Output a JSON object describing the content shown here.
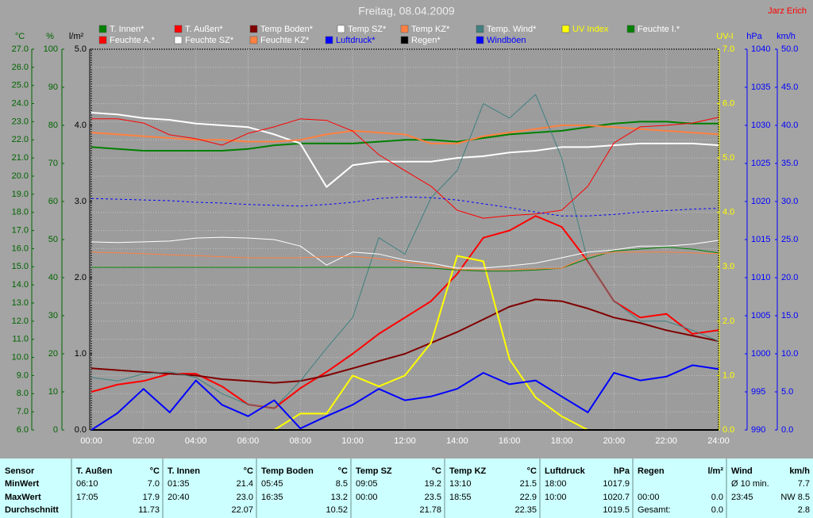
{
  "chart_data": {
    "type": "line",
    "title": "Freitag, 08.04.2009",
    "author": "Jarz Erich",
    "x": [
      0,
      1,
      2,
      3,
      4,
      5,
      6,
      7,
      8,
      9,
      10,
      11,
      12,
      13,
      14,
      15,
      16,
      17,
      18,
      19,
      20,
      21,
      22,
      23,
      24
    ],
    "xlim": [
      0,
      24
    ],
    "xticks": [
      {
        "value": 0,
        "label": "00:00"
      },
      {
        "value": 2,
        "label": "02:00"
      },
      {
        "value": 4,
        "label": "04:00"
      },
      {
        "value": 6,
        "label": "06:00"
      },
      {
        "value": 8,
        "label": "08:00"
      },
      {
        "value": 10,
        "label": "10:00"
      },
      {
        "value": 12,
        "label": "12:00"
      },
      {
        "value": 14,
        "label": "14:00"
      },
      {
        "value": 16,
        "label": "16:00"
      },
      {
        "value": 18,
        "label": "18:00"
      },
      {
        "value": 20,
        "label": "20:00"
      },
      {
        "value": 22,
        "label": "22:00"
      },
      {
        "value": 24,
        "label": "24:00"
      }
    ],
    "ylabel": "°C",
    "ylim": [
      6,
      27
    ],
    "yticks": [
      {
        "value": 6,
        "label": "6.0"
      },
      {
        "value": 7,
        "label": "7.0"
      },
      {
        "value": 8,
        "label": "8.0"
      },
      {
        "value": 9,
        "label": "9.0"
      },
      {
        "value": 10,
        "label": "10.0"
      },
      {
        "value": 11,
        "label": "11.0"
      },
      {
        "value": 12,
        "label": "12.0"
      },
      {
        "value": 13,
        "label": "13.0"
      },
      {
        "value": 14,
        "label": "14.0"
      },
      {
        "value": 15,
        "label": "15.0"
      },
      {
        "value": 16,
        "label": "16.0"
      },
      {
        "value": 17,
        "label": "17.0"
      },
      {
        "value": 18,
        "label": "18.0"
      },
      {
        "value": 19,
        "label": "19.0"
      },
      {
        "value": 20,
        "label": "20.0"
      },
      {
        "value": 21,
        "label": "21.0"
      },
      {
        "value": 22,
        "label": "22.0"
      },
      {
        "value": 23,
        "label": "23.0"
      },
      {
        "value": 24,
        "label": "24.0"
      },
      {
        "value": 25,
        "label": "25.0"
      },
      {
        "value": 26,
        "label": "26.0"
      },
      {
        "value": 27,
        "label": "27.0"
      }
    ],
    "y2label": "%",
    "y2lim": [
      0,
      100
    ],
    "y2ticks": [
      0,
      10,
      20,
      30,
      40,
      50,
      60,
      70,
      80,
      90,
      100
    ],
    "y3label": "l/m²",
    "y3lim": [
      0,
      5
    ],
    "y3ticks": [
      {
        "value": 0,
        "label": "0.0"
      },
      {
        "value": 1,
        "label": "1.0"
      },
      {
        "value": 2,
        "label": "2.0"
      },
      {
        "value": 3,
        "label": "3.0"
      },
      {
        "value": 4,
        "label": "4.0"
      },
      {
        "value": 5,
        "label": "5.0"
      }
    ],
    "y4label": "UV-I",
    "y4lim": [
      0,
      7
    ],
    "y4ticks": [
      {
        "value": 0,
        "label": "0.0"
      },
      {
        "value": 1,
        "label": "1.0"
      },
      {
        "value": 2,
        "label": "2.0"
      },
      {
        "value": 3,
        "label": "3.0"
      },
      {
        "value": 4,
        "label": "4.0"
      },
      {
        "value": 5,
        "label": "5.0"
      },
      {
        "value": 6,
        "label": "6.0"
      },
      {
        "value": 7,
        "label": "7.0"
      }
    ],
    "y5label": "hPa",
    "y5lim": [
      990,
      1040
    ],
    "y5ticks": [
      990,
      995,
      1000,
      1005,
      1010,
      1015,
      1020,
      1025,
      1030,
      1035,
      1040
    ],
    "y6label": "km/h",
    "y6lim": [
      0,
      50
    ],
    "y6ticks": [
      {
        "value": 0,
        "label": "0.0"
      },
      {
        "value": 5,
        "label": "5.0"
      },
      {
        "value": 10,
        "label": "10.0"
      },
      {
        "value": 15,
        "label": "15.0"
      },
      {
        "value": 20,
        "label": "20.0"
      },
      {
        "value": 25,
        "label": "25.0"
      },
      {
        "value": 30,
        "label": "30.0"
      },
      {
        "value": 35,
        "label": "35.0"
      },
      {
        "value": 40,
        "label": "40.0"
      },
      {
        "value": 45,
        "label": "45.0"
      },
      {
        "value": 50,
        "label": "50.0"
      }
    ],
    "axis_colors": {
      "y": "#006400",
      "y2": "#006400",
      "y3": "#000000",
      "y4": "#ffff00",
      "y5": "#0000ff",
      "y6": "#0000ff"
    },
    "grid": true,
    "series": [
      {
        "name": "T. Innen*",
        "color": "#008000",
        "axis": "y",
        "line": "thick",
        "values": [
          21.6,
          21.5,
          21.4,
          21.4,
          21.4,
          21.4,
          21.5,
          21.7,
          21.8,
          21.8,
          21.8,
          21.9,
          22.0,
          22.0,
          21.9,
          22.1,
          22.3,
          22.4,
          22.5,
          22.7,
          22.9,
          23.0,
          23.0,
          22.9,
          22.9
        ]
      },
      {
        "name": "T. Außen*",
        "color": "#ff0000",
        "axis": "y",
        "line": "thick",
        "values": [
          8.1,
          8.5,
          8.7,
          9.1,
          9.1,
          8.4,
          7.4,
          7.2,
          8.3,
          9.2,
          10.2,
          11.3,
          12.2,
          13.1,
          14.6,
          16.6,
          17.0,
          17.8,
          17.2,
          15.3,
          13.1,
          12.2,
          12.4,
          11.3,
          11.5
        ]
      },
      {
        "name": "Temp Boden*",
        "color": "#800000",
        "axis": "y",
        "line": "thick",
        "values": [
          9.4,
          9.3,
          9.2,
          9.1,
          9.0,
          8.8,
          8.7,
          8.6,
          8.7,
          9.0,
          9.4,
          9.8,
          10.2,
          10.8,
          11.4,
          12.1,
          12.8,
          13.2,
          13.1,
          12.7,
          12.2,
          11.9,
          11.5,
          11.2,
          10.9
        ]
      },
      {
        "name": "Temp SZ*",
        "color": "#ffffff",
        "axis": "y",
        "line": "thick",
        "values": [
          23.5,
          23.4,
          23.2,
          23.1,
          22.9,
          22.8,
          22.7,
          22.3,
          21.8,
          19.4,
          20.6,
          20.8,
          20.8,
          20.8,
          21.0,
          21.1,
          21.3,
          21.4,
          21.6,
          21.6,
          21.7,
          21.8,
          21.8,
          21.8,
          21.7
        ]
      },
      {
        "name": "Temp KZ*",
        "color": "#ff8040",
        "axis": "y",
        "line": "thick",
        "values": [
          22.4,
          22.3,
          22.2,
          22.1,
          22.0,
          22.0,
          21.9,
          21.9,
          22.0,
          22.3,
          22.5,
          22.4,
          22.3,
          21.8,
          21.8,
          22.2,
          22.4,
          22.6,
          22.8,
          22.8,
          22.7,
          22.6,
          22.5,
          22.4,
          22.3
        ]
      },
      {
        "name": "Temp. Wind*",
        "color": "#408080",
        "axis": "y",
        "line": "thin",
        "values": [
          8.9,
          8.7,
          9.1,
          9.2,
          8.9,
          8.0,
          7.4,
          7.2,
          8.7,
          10.5,
          12.2,
          16.6,
          15.7,
          18.8,
          20.3,
          24.0,
          23.2,
          24.5,
          21.0,
          15.3,
          13.1,
          12.0,
          12.0,
          11.5,
          10.9
        ]
      },
      {
        "name": "UV Index",
        "color": "#ffff00",
        "axis": "y4",
        "line": "thick",
        "values": [
          0,
          0,
          0,
          0,
          0,
          0,
          0,
          0,
          0.3,
          0.3,
          1.0,
          0.8,
          1.0,
          1.6,
          3.2,
          3.1,
          1.3,
          0.6,
          0.25,
          0,
          0,
          0,
          0,
          0,
          0
        ]
      },
      {
        "name": "Feuchte I.*",
        "color": "#008000",
        "axis": "y2",
        "line": "thin",
        "values": [
          42.7,
          42.7,
          42.7,
          42.7,
          42.7,
          42.7,
          42.7,
          42.7,
          42.7,
          42.7,
          42.7,
          42.7,
          42.7,
          42.5,
          42.0,
          41.7,
          41.7,
          42.0,
          42.5,
          45.0,
          47.0,
          47.5,
          48.0,
          47.5,
          46.5
        ]
      },
      {
        "name": "Feuchte A.*",
        "color": "#ff0000",
        "axis": "y2",
        "line": "thin",
        "values": [
          81.7,
          81.7,
          80.6,
          77.5,
          76.5,
          74.8,
          77.9,
          79.6,
          81.7,
          81.3,
          78.5,
          72.3,
          68.1,
          64.0,
          57.7,
          55.6,
          56.3,
          56.7,
          57.7,
          64.0,
          75.4,
          79.6,
          80.0,
          80.6,
          82.1
        ]
      },
      {
        "name": "Feuchte SZ*",
        "color": "#ffffff",
        "axis": "y2",
        "line": "thin",
        "values": [
          49.4,
          49.2,
          49.4,
          49.6,
          50.4,
          50.6,
          50.4,
          50.0,
          48.3,
          43.3,
          46.7,
          46.2,
          44.6,
          43.8,
          42.5,
          42.5,
          43.1,
          43.8,
          45.2,
          46.7,
          47.3,
          48.3,
          48.3,
          48.8,
          49.8
        ]
      },
      {
        "name": "Feuchte KZ*",
        "color": "#ff8040",
        "axis": "y2",
        "line": "thin",
        "values": [
          46.7,
          46.5,
          46.3,
          46.0,
          45.8,
          45.5,
          45.2,
          45.2,
          45.2,
          45.5,
          45.6,
          45.0,
          44.2,
          43.3,
          42.1,
          42.1,
          42.1,
          42.3,
          42.5,
          45.8,
          46.7,
          46.7,
          46.7,
          46.5,
          46.3
        ]
      },
      {
        "name": "Luftdruck*",
        "color": "#0000ff",
        "axis": "y5",
        "line": "dashed",
        "values": [
          1020.4,
          1020.3,
          1020.2,
          1020.1,
          1019.9,
          1019.8,
          1019.6,
          1019.5,
          1019.4,
          1019.6,
          1019.9,
          1020.4,
          1020.6,
          1020.5,
          1020.2,
          1019.7,
          1019.2,
          1018.6,
          1018.1,
          1018.1,
          1018.3,
          1018.6,
          1018.8,
          1019.0,
          1019.1
        ]
      },
      {
        "name": "Regen*",
        "color": "#000000",
        "axis": "y3",
        "line": "thick",
        "values": [
          0,
          0,
          0,
          0,
          0,
          0,
          0,
          0,
          0,
          0,
          0,
          0,
          0,
          0,
          0,
          0,
          0,
          0,
          0,
          0,
          0,
          0,
          0,
          0,
          0
        ]
      },
      {
        "name": "Windböen",
        "color": "#0000ff",
        "axis": "y6",
        "line": "thick",
        "values": [
          0.0,
          2.2,
          5.4,
          2.3,
          6.5,
          3.3,
          1.8,
          3.9,
          0.2,
          1.8,
          3.3,
          5.4,
          3.9,
          4.4,
          5.4,
          7.5,
          6.0,
          6.5,
          4.4,
          2.3,
          7.5,
          6.5,
          7.0,
          8.5,
          8.0
        ]
      }
    ]
  },
  "table": {
    "columns": [
      {
        "name": "Sensor"
      },
      {
        "name": "T. Außen",
        "unit": "°C"
      },
      {
        "name": "T. Innen",
        "unit": "°C"
      },
      {
        "name": "Temp Boden",
        "unit": "°C"
      },
      {
        "name": "Temp SZ",
        "unit": "°C"
      },
      {
        "name": "Temp KZ",
        "unit": "°C"
      },
      {
        "name": "Luftdruck",
        "unit": "hPa"
      },
      {
        "name": "Regen",
        "unit": "l/m²"
      },
      {
        "name": "Wind",
        "unit": "km/h"
      }
    ],
    "rows": [
      {
        "label": "MinWert",
        "cells": [
          [
            "06:10",
            "7.0"
          ],
          [
            "01:35",
            "21.4"
          ],
          [
            "05:45",
            "8.5"
          ],
          [
            "09:05",
            "19.2"
          ],
          [
            "13:10",
            "21.5"
          ],
          [
            "18:00",
            "1017.9"
          ],
          [
            null,
            null
          ],
          [
            "Ø 10 min.",
            "7.7"
          ]
        ]
      },
      {
        "label": "MaxWert",
        "cells": [
          [
            "17:05",
            "17.9"
          ],
          [
            "20:40",
            "23.0"
          ],
          [
            "16:35",
            "13.2"
          ],
          [
            "00:00",
            "23.5"
          ],
          [
            "18:55",
            "22.9"
          ],
          [
            "10:00",
            "1020.7"
          ],
          [
            "00:00",
            "0.0"
          ],
          [
            "23:45",
            "NW 8.5"
          ]
        ]
      },
      {
        "label": "Durchschnitt",
        "cells": [
          [
            null,
            "11.73"
          ],
          [
            null,
            "22.07"
          ],
          [
            null,
            "10.52"
          ],
          [
            null,
            "21.78"
          ],
          [
            null,
            "22.35"
          ],
          [
            null,
            "1019.5"
          ],
          [
            "Gesamt:",
            "0.0"
          ],
          [
            null,
            "2.8"
          ]
        ]
      }
    ]
  }
}
